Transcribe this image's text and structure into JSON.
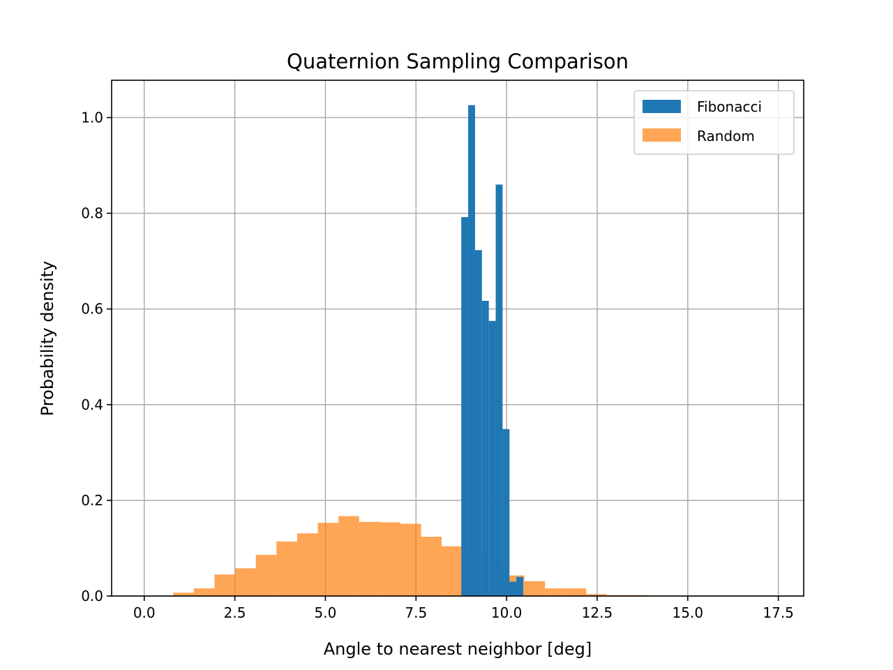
{
  "chart_data": {
    "type": "bar",
    "title": "Quaternion Sampling Comparison",
    "xlabel": "Angle to nearest neighbor [deg]",
    "ylabel": "Probability density",
    "xlim": [
      -0.9,
      18.2
    ],
    "ylim": [
      0,
      1.078
    ],
    "xticks": [
      0.0,
      2.5,
      5.0,
      7.5,
      10.0,
      12.5,
      15.0,
      17.5
    ],
    "xtick_labels": [
      "0.0",
      "2.5",
      "5.0",
      "7.5",
      "10.0",
      "12.5",
      "15.0",
      "17.5"
    ],
    "yticks": [
      0.0,
      0.2,
      0.4,
      0.6,
      0.8,
      1.0
    ],
    "ytick_labels": [
      "0.0",
      "0.2",
      "0.4",
      "0.6",
      "0.8",
      "1.0"
    ],
    "grid": true,
    "legend_position": "top-right",
    "series": [
      {
        "name": "Fibonacci",
        "color": "#1f77b4",
        "opacity": 1.0,
        "bin_edges": [
          8.75,
          8.94,
          9.13,
          9.32,
          9.51,
          9.7,
          9.89,
          10.08,
          10.27,
          10.46
        ],
        "values": [
          0.792,
          1.026,
          0.723,
          0.617,
          0.575,
          0.86,
          0.349,
          0.03,
          0.04
        ]
      },
      {
        "name": "Random",
        "color": "#ff7f0e",
        "opacity": 0.7,
        "bin_edges": [
          0.8,
          1.37,
          1.94,
          2.51,
          3.08,
          3.65,
          4.22,
          4.79,
          5.36,
          5.93,
          6.5,
          7.07,
          7.64,
          8.21,
          8.78,
          9.35,
          9.92,
          10.49,
          11.06,
          11.63,
          12.2,
          12.77,
          13.34,
          13.91
        ],
        "values": [
          0.007,
          0.016,
          0.045,
          0.058,
          0.086,
          0.114,
          0.131,
          0.153,
          0.167,
          0.155,
          0.154,
          0.151,
          0.124,
          0.104,
          0.09,
          0.066,
          0.043,
          0.031,
          0.016,
          0.016,
          0.004,
          0.002,
          0.002
        ]
      }
    ]
  }
}
